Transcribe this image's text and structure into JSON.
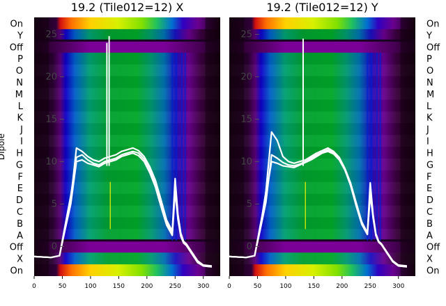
{
  "chart_data": [
    {
      "type": "heatmap",
      "title": "19.2 (Tile012=12) X",
      "ylabel": "Dipole",
      "row_labels_top_to_bottom": [
        "On",
        "Y",
        "Off",
        "P",
        "O",
        "N",
        "M",
        "L",
        "K",
        "J",
        "I",
        "H",
        "G",
        "F",
        "E",
        "D",
        "C",
        "B",
        "A",
        "Off",
        "X",
        "On"
      ],
      "x_ticks": [
        0,
        50,
        100,
        150,
        200,
        250,
        300
      ],
      "xlim": [
        0,
        330
      ],
      "overlay_ticks": [
        0,
        5,
        10,
        15,
        20,
        25
      ],
      "overlay_ylim": [
        -3.5,
        27
      ],
      "overlay_lines": {
        "color": "#ffffff",
        "x": [
          0,
          30,
          45,
          55,
          65,
          75,
          85,
          95,
          105,
          115,
          125,
          135,
          145,
          155,
          165,
          175,
          185,
          195,
          205,
          215,
          225,
          235,
          245,
          250,
          255,
          260,
          265,
          270,
          280,
          290,
          300,
          315
        ],
        "series": [
          {
            "y": [
              -1.2,
              -1.3,
              -1.1,
              2.5,
              6.0,
              10.5,
              10.8,
              10.2,
              9.8,
              9.6,
              10.0,
              10.2,
              10.4,
              10.8,
              11.0,
              11.2,
              11.0,
              10.3,
              9.0,
              7.3,
              5.0,
              2.8,
              1.5,
              7.0,
              3.5,
              1.4,
              0.5,
              0.2,
              -0.8,
              -1.8,
              -2.3,
              -2.4
            ]
          },
          {
            "y": [
              -1.2,
              -1.3,
              -1.1,
              2.2,
              5.5,
              11.6,
              11.2,
              10.6,
              10.2,
              10.0,
              10.4,
              10.6,
              10.8,
              11.2,
              11.4,
              11.6,
              11.3,
              10.6,
              9.4,
              7.8,
              5.5,
              3.1,
              1.8,
              8.0,
              3.8,
              1.6,
              0.6,
              0.3,
              -0.7,
              -1.7,
              -2.2,
              -2.3
            ]
          },
          {
            "y": [
              -1.2,
              -1.3,
              -1.1,
              2.0,
              5.0,
              10.0,
              10.2,
              9.8,
              9.6,
              9.4,
              9.8,
              10.0,
              10.2,
              10.6,
              10.8,
              11.0,
              10.7,
              10.0,
              8.7,
              7.0,
              4.7,
              2.5,
              1.3,
              6.5,
              3.2,
              1.2,
              0.4,
              0.1,
              -0.9,
              -1.9,
              -2.3,
              -2.4
            ]
          }
        ],
        "spikes": [
          {
            "x": 129,
            "y": 24
          },
          {
            "x": 133,
            "y": 24.8
          }
        ]
      }
    },
    {
      "type": "heatmap",
      "title": "19.2 (Tile012=12) Y",
      "ylabel": "",
      "row_labels_top_to_bottom": [
        "On",
        "Y",
        "Off",
        "P",
        "O",
        "N",
        "M",
        "L",
        "K",
        "J",
        "I",
        "H",
        "G",
        "F",
        "E",
        "D",
        "C",
        "B",
        "A",
        "Off",
        "X",
        "On"
      ],
      "x_ticks": [
        0,
        50,
        100,
        150,
        200,
        250,
        300
      ],
      "xlim": [
        0,
        330
      ],
      "overlay_ticks": [
        0,
        5,
        10,
        15,
        20,
        25
      ],
      "overlay_ylim": [
        -3.5,
        27
      ],
      "overlay_lines": {
        "color": "#ffffff",
        "x": [
          0,
          30,
          45,
          55,
          65,
          75,
          85,
          95,
          105,
          115,
          125,
          135,
          145,
          155,
          165,
          175,
          185,
          195,
          205,
          215,
          225,
          235,
          245,
          250,
          255,
          260,
          265,
          270,
          280,
          290,
          300,
          315
        ],
        "series": [
          {
            "y": [
              -1.2,
              -1.3,
              -1.1,
              2.5,
              6.0,
              10.0,
              9.8,
              9.5,
              9.4,
              9.3,
              9.6,
              9.9,
              10.2,
              10.6,
              11.0,
              11.2,
              10.9,
              10.2,
              9.0,
              7.2,
              4.8,
              2.6,
              1.4,
              6.0,
              3.5,
              1.3,
              0.5,
              0.2,
              -0.8,
              -1.8,
              -2.3,
              -2.4
            ]
          },
          {
            "y": [
              -1.2,
              -1.3,
              -1.1,
              2.2,
              6.5,
              13.5,
              12.5,
              10.6,
              10.0,
              9.8,
              10.0,
              10.2,
              10.6,
              11.0,
              11.3,
              11.6,
              11.2,
              10.5,
              9.2,
              7.5,
              5.2,
              2.9,
              1.6,
              7.5,
              3.8,
              1.5,
              0.6,
              0.3,
              -0.7,
              -1.7,
              -2.2,
              -2.3
            ]
          },
          {
            "y": [
              -1.2,
              -1.3,
              -1.1,
              2.0,
              5.2,
              10.8,
              10.4,
              9.9,
              9.6,
              9.5,
              9.7,
              10.0,
              10.4,
              10.8,
              11.1,
              11.4,
              11.0,
              10.3,
              9.1,
              7.3,
              5.0,
              2.7,
              1.5,
              6.8,
              3.4,
              1.3,
              0.5,
              0.2,
              -0.8,
              -1.8,
              -2.3,
              -2.4
            ]
          }
        ],
        "spikes": [
          {
            "x": 131,
            "y": 24.5
          }
        ]
      }
    }
  ]
}
